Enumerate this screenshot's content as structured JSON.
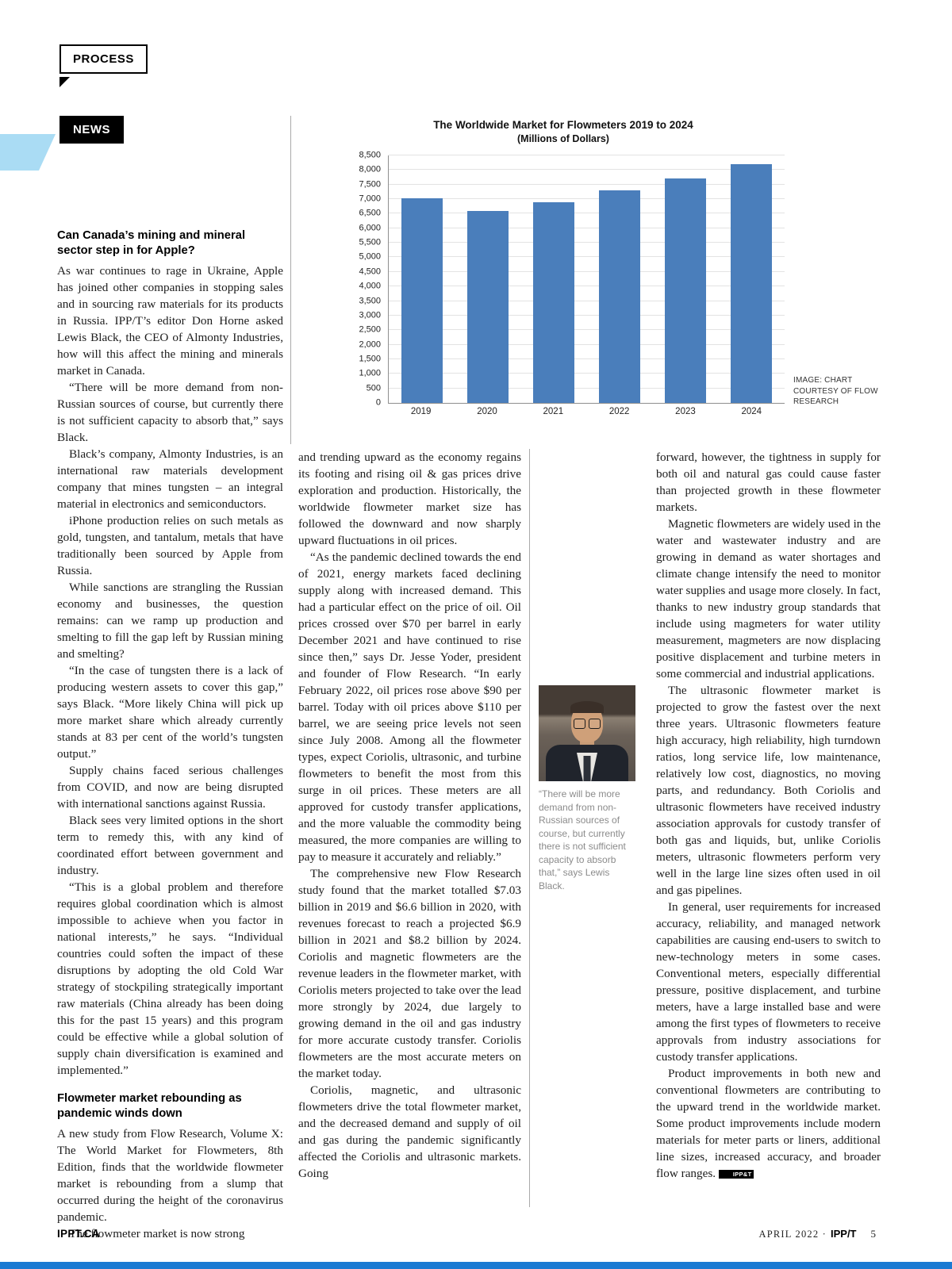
{
  "page": {
    "process_label": "PROCESS",
    "news_label": "NEWS"
  },
  "chart_data": {
    "type": "bar",
    "title": "The Worldwide Market for Flowmeters 2019 to 2024",
    "subtitle": "(Millions of Dollars)",
    "categories": [
      "2019",
      "2020",
      "2021",
      "2022",
      "2023",
      "2024"
    ],
    "values": [
      7030,
      6600,
      6900,
      7300,
      7700,
      8200
    ],
    "xlabel": "",
    "ylabel": "",
    "ylim": [
      0,
      8500
    ],
    "ytick_step": 500,
    "bar_color": "#4a7ebb",
    "grid": true,
    "legend": false,
    "credit": "IMAGE: CHART COURTESY OF FLOW RESEARCH"
  },
  "left_column": {
    "article1": {
      "heading": "Can Canada’s mining and mineral sector step in for Apple?",
      "paragraphs": [
        "As war continues to rage in Ukraine, Apple has joined other companies in stopping sales and in sourcing raw materials for its products in Russia. IPP/T’s editor Don Horne asked Lewis Black, the CEO of Almonty Industries, how will this affect the mining and minerals market in Canada.",
        "“There will be more demand from non-Russian sources of course, but currently there is not sufficient capacity to absorb that,” says Black.",
        "Black’s company, Almonty Industries, is an international raw materials development company that mines tungsten – an integral material in electronics and semiconductors.",
        "iPhone production relies on such metals as gold, tungsten, and tantalum, metals that have traditionally been sourced by Apple from Russia.",
        "While sanctions are strangling the Russian economy and businesses, the question remains: can we ramp up production and smelting to fill the gap left by Russian mining and smelting?",
        "“In the case of tungsten there is a lack of producing western assets to cover this gap,” says Black. “More likely China will pick up more market share which already currently stands at 83 per cent of the world’s tungsten output.”",
        "Supply chains faced serious challenges from COVID, and now are being disrupted with international sanctions against Russia.",
        "Black sees very limited options in the short term to remedy this, with any kind of coordinated effort between government and industry.",
        "“This is a global problem and therefore requires global coordination which is almost impossible to achieve when you factor in national interests,” he says. “Individual countries could soften the impact of these disruptions by adopting the old Cold War strategy of stockpiling strategically important raw materials (China already has been doing this for the past 15 years) and this program could be effective while a global solution of supply chain diversification is examined and implemented.”"
      ]
    },
    "article2": {
      "heading": "Flowmeter market rebounding as pandemic winds down",
      "paragraphs": [
        "A new study from Flow Research, Volume X: The World Market for Flowmeters, 8th Edition, finds that the worldwide flowmeter market is rebounding from a slump that occurred during the height of the coronavirus pandemic.",
        "The flowmeter market is now strong"
      ]
    }
  },
  "middle_column": {
    "paragraphs": [
      "and trending upward as the economy regains its footing and rising oil & gas prices drive exploration and production. Historically, the worldwide flowmeter market size has followed the downward and now sharply upward fluctuations in oil prices.",
      "“As the pandemic declined towards the end of 2021, energy markets faced declining supply along with increased demand. This had a particular effect on the price of oil. Oil prices crossed over $70 per barrel in early December 2021 and have continued to rise since then,” says Dr. Jesse Yoder, president and founder of Flow Research. “In early February 2022, oil prices rose above $90 per barrel. Today with oil prices above $110 per barrel, we are seeing price levels not seen since July 2008. Among all the flowmeter types, expect Coriolis, ultrasonic, and turbine flowmeters to benefit the most from this surge in oil prices. These meters are all approved for custody transfer applications, and the more valuable the commodity being measured, the more companies are willing to pay to measure it accurately and reliably.”",
      "The comprehensive new Flow Research study found that the market totalled $7.03 billion in 2019 and $6.6 billion in 2020, with revenues forecast to reach a projected $6.9 billion in 2021 and $8.2 billion by 2024. Coriolis and magnetic flowmeters are the revenue leaders in the flowmeter market, with Coriolis meters projected to take over the lead more strongly by 2024, due largely to growing demand in the oil and gas industry for more accurate custody transfer. Coriolis flowmeters are the most accurate meters on the market today.",
      "Coriolis, magnetic, and ultrasonic flowmeters drive the total flowmeter market, and the decreased demand and supply of oil and gas during the pandemic significantly affected the Coriolis and ultrasonic markets. Going"
    ]
  },
  "photo": {
    "caption": "“There will be more demand from non-Russian sources of course, but currently there is not sufficient capacity to absorb that,” says Lewis Black."
  },
  "right_column": {
    "paragraphs": [
      "forward, however, the tightness in supply for both oil and natural gas could cause faster than projected growth in these flowmeter markets.",
      "Magnetic flowmeters are widely used in the water and wastewater industry and are growing in demand as water shortages and climate change intensify the need to monitor water supplies and usage more closely. In fact, thanks to new industry group standards that include using magmeters for water utility measurement, magmeters are now displacing positive displacement and turbine meters in some commercial and industrial applications.",
      "The ultrasonic flowmeter market is projected to grow the fastest over the next three years.  Ultrasonic flowmeters feature high accuracy, high reliability, high turndown ratios, long service life, low maintenance, relatively low cost, diagnostics, no moving parts, and redundancy. Both Coriolis and ultrasonic flowmeters have received industry association approvals for custody transfer of both gas and liquids, but, unlike Coriolis meters, ultrasonic flowmeters perform very well in the large line sizes often used in oil and gas pipelines.",
      "In general, user requirements for increased accuracy, reliability, and managed network capabilities are causing end-users to switch to new-technology meters in some cases. Conventional meters, especially differential pressure, positive displacement, and turbine meters, have a large installed base and were among the first types of flowmeters to receive approvals from industry associations for custody transfer applications."
    ],
    "last_paragraph": "Product improvements in both new and conventional flowmeters are contributing to the upward trend in the worldwide market. Some product improvements include modern materials for meter parts or liners, additional line sizes, increased accuracy, and broader flow ranges.",
    "end_mark": "IPP&T"
  },
  "footer": {
    "site": "IPPT.CA",
    "issue": "APRIL 2022 ·",
    "magazine": "IPP/T",
    "page_number": "5"
  }
}
